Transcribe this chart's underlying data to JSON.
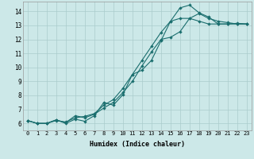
{
  "xlabel": "Humidex (Indice chaleur)",
  "xlim": [
    -0.5,
    23.5
  ],
  "ylim": [
    5.5,
    14.7
  ],
  "xticks": [
    0,
    1,
    2,
    3,
    4,
    5,
    6,
    7,
    8,
    9,
    10,
    11,
    12,
    13,
    14,
    15,
    16,
    17,
    18,
    19,
    20,
    21,
    22,
    23
  ],
  "yticks": [
    6,
    7,
    8,
    9,
    10,
    11,
    12,
    13,
    14
  ],
  "bg_color": "#cce8e8",
  "grid_color": "#aacccc",
  "line_color": "#1a6e6e",
  "series": [
    {
      "x": [
        0,
        1,
        2,
        3,
        4,
        5,
        6,
        7,
        8,
        9,
        10,
        11,
        12,
        13,
        14,
        15,
        16,
        17,
        18,
        19,
        20,
        21,
        22,
        23
      ],
      "y": [
        6.2,
        6.0,
        6.0,
        6.25,
        6.0,
        6.3,
        6.15,
        6.55,
        7.5,
        7.3,
        8.05,
        9.5,
        9.8,
        10.5,
        11.9,
        13.3,
        14.25,
        14.45,
        13.9,
        13.6,
        13.1,
        13.1,
        13.15,
        13.1
      ]
    },
    {
      "x": [
        0,
        1,
        2,
        3,
        4,
        5,
        6,
        7,
        8,
        9,
        10,
        11,
        12,
        13,
        14,
        15,
        16,
        17,
        18,
        19,
        20,
        21,
        22,
        23
      ],
      "y": [
        6.2,
        6.0,
        6.0,
        6.25,
        6.05,
        6.55,
        6.4,
        6.65,
        7.1,
        7.5,
        8.2,
        9.0,
        10.1,
        11.1,
        12.0,
        12.15,
        12.55,
        13.5,
        13.85,
        13.5,
        13.3,
        13.2,
        13.1,
        13.1
      ]
    },
    {
      "x": [
        0,
        1,
        2,
        3,
        4,
        5,
        6,
        7,
        8,
        9,
        10,
        11,
        12,
        13,
        14,
        15,
        16,
        17,
        18,
        19,
        20,
        21,
        22,
        23
      ],
      "y": [
        6.2,
        6.0,
        6.0,
        6.2,
        6.1,
        6.4,
        6.5,
        6.7,
        7.3,
        7.7,
        8.5,
        9.5,
        10.5,
        11.5,
        12.5,
        13.3,
        13.5,
        13.5,
        13.3,
        13.1,
        13.1,
        13.1,
        13.1,
        13.1
      ]
    }
  ]
}
